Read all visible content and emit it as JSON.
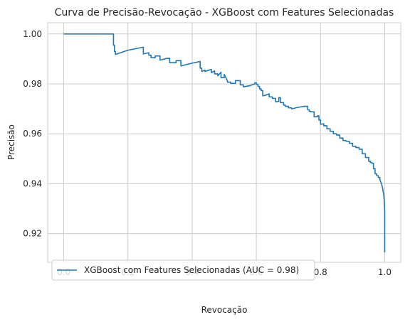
{
  "chart_data": {
    "type": "line",
    "title": "Curva de Precisão-Revocação - XGBoost com Features Selecionadas",
    "xlabel": "Revocação",
    "ylabel": "Precisão",
    "xlim": [
      -0.05,
      1.05
    ],
    "ylim": [
      0.9085,
      1.0045
    ],
    "xticks": [
      0.0,
      0.2,
      0.4,
      0.6,
      0.8,
      1.0
    ],
    "xtick_labels": [
      "0.0",
      "0.2",
      "0.4",
      "0.6",
      "0.8",
      "1.0"
    ],
    "yticks": [
      0.92,
      0.94,
      0.96,
      0.98,
      1.0
    ],
    "ytick_labels": [
      "0.92",
      "0.94",
      "0.96",
      "0.98",
      "1.00"
    ],
    "grid": true,
    "legend_position": "lower-left",
    "series": [
      {
        "name": "XGBoost com Features Selecionadas (AUC = 0.98)",
        "color": "#1f77b4",
        "x": [
          0.0,
          0.155,
          0.155,
          0.158,
          0.158,
          0.161,
          0.161,
          0.2,
          0.248,
          0.248,
          0.265,
          0.265,
          0.272,
          0.272,
          0.285,
          0.285,
          0.3,
          0.3,
          0.32,
          0.33,
          0.33,
          0.35,
          0.35,
          0.365,
          0.365,
          0.4,
          0.425,
          0.425,
          0.43,
          0.43,
          0.44,
          0.44,
          0.46,
          0.46,
          0.47,
          0.47,
          0.48,
          0.48,
          0.49,
          0.49,
          0.5,
          0.5,
          0.51,
          0.51,
          0.52,
          0.52,
          0.535,
          0.535,
          0.55,
          0.55,
          0.56,
          0.56,
          0.58,
          0.58,
          0.595,
          0.595,
          0.6,
          0.6,
          0.605,
          0.605,
          0.61,
          0.61,
          0.615,
          0.615,
          0.62,
          0.62,
          0.63,
          0.63,
          0.64,
          0.64,
          0.65,
          0.65,
          0.66,
          0.66,
          0.67,
          0.67,
          0.675,
          0.675,
          0.685,
          0.685,
          0.69,
          0.69,
          0.7,
          0.7,
          0.71,
          0.71,
          0.73,
          0.73,
          0.75,
          0.76,
          0.76,
          0.765,
          0.765,
          0.77,
          0.77,
          0.78,
          0.78,
          0.79,
          0.79,
          0.795,
          0.795,
          0.8,
          0.8,
          0.81,
          0.81,
          0.82,
          0.82,
          0.83,
          0.83,
          0.84,
          0.84,
          0.85,
          0.85,
          0.86,
          0.86,
          0.87,
          0.87,
          0.88,
          0.88,
          0.89,
          0.89,
          0.9,
          0.9,
          0.91,
          0.91,
          0.92,
          0.92,
          0.93,
          0.93,
          0.94,
          0.94,
          0.95,
          0.95,
          0.955,
          0.955,
          0.96,
          0.96,
          0.965,
          0.965,
          0.97,
          0.97,
          0.975,
          0.975,
          0.98,
          0.98,
          0.985,
          0.985,
          0.99,
          0.993,
          0.995,
          0.997,
          0.998,
          0.999,
          1.0,
          1.0
        ],
        "y": [
          1.0,
          1.0,
          0.9955,
          0.9955,
          0.993,
          0.993,
          0.9918,
          0.9935,
          0.9947,
          0.992,
          0.9925,
          0.9915,
          0.9915,
          0.9905,
          0.9905,
          0.9912,
          0.9912,
          0.9895,
          0.9902,
          0.9902,
          0.9885,
          0.9885,
          0.9893,
          0.9893,
          0.9872,
          0.9883,
          0.989,
          0.9863,
          0.9863,
          0.985,
          0.9855,
          0.985,
          0.9858,
          0.9845,
          0.9852,
          0.984,
          0.984,
          0.9832,
          0.9847,
          0.9825,
          0.9825,
          0.9838,
          0.9812,
          0.9807,
          0.9807,
          0.9802,
          0.9802,
          0.9813,
          0.9813,
          0.9796,
          0.9796,
          0.9788,
          0.9793,
          0.9793,
          0.98,
          0.9804,
          0.9804,
          0.9798,
          0.9798,
          0.979,
          0.979,
          0.978,
          0.978,
          0.9773,
          0.9773,
          0.9752,
          0.9755,
          0.9755,
          0.976,
          0.9748,
          0.9748,
          0.9742,
          0.9742,
          0.9728,
          0.973,
          0.9745,
          0.9745,
          0.9725,
          0.9725,
          0.9715,
          0.9715,
          0.971,
          0.971,
          0.9704,
          0.9704,
          0.97,
          0.9706,
          0.9706,
          0.971,
          0.971,
          0.9696,
          0.9696,
          0.969,
          0.969,
          0.9688,
          0.9688,
          0.9668,
          0.9668,
          0.9672,
          0.9672,
          0.9655,
          0.9655,
          0.9638,
          0.964,
          0.9632,
          0.9632,
          0.962,
          0.962,
          0.961,
          0.961,
          0.96,
          0.96,
          0.9595,
          0.9595,
          0.9583,
          0.9583,
          0.9573,
          0.9573,
          0.957,
          0.957,
          0.9562,
          0.9562,
          0.955,
          0.955,
          0.9545,
          0.9545,
          0.9538,
          0.9538,
          0.952,
          0.952,
          0.9505,
          0.9505,
          0.949,
          0.949,
          0.9485,
          0.9485,
          0.9482,
          0.9482,
          0.946,
          0.946,
          0.944,
          0.944,
          0.9432,
          0.9432,
          0.9425,
          0.9425,
          0.9415,
          0.94,
          0.9385,
          0.937,
          0.9355,
          0.934,
          0.932,
          0.929,
          0.9125
        ]
      }
    ]
  }
}
